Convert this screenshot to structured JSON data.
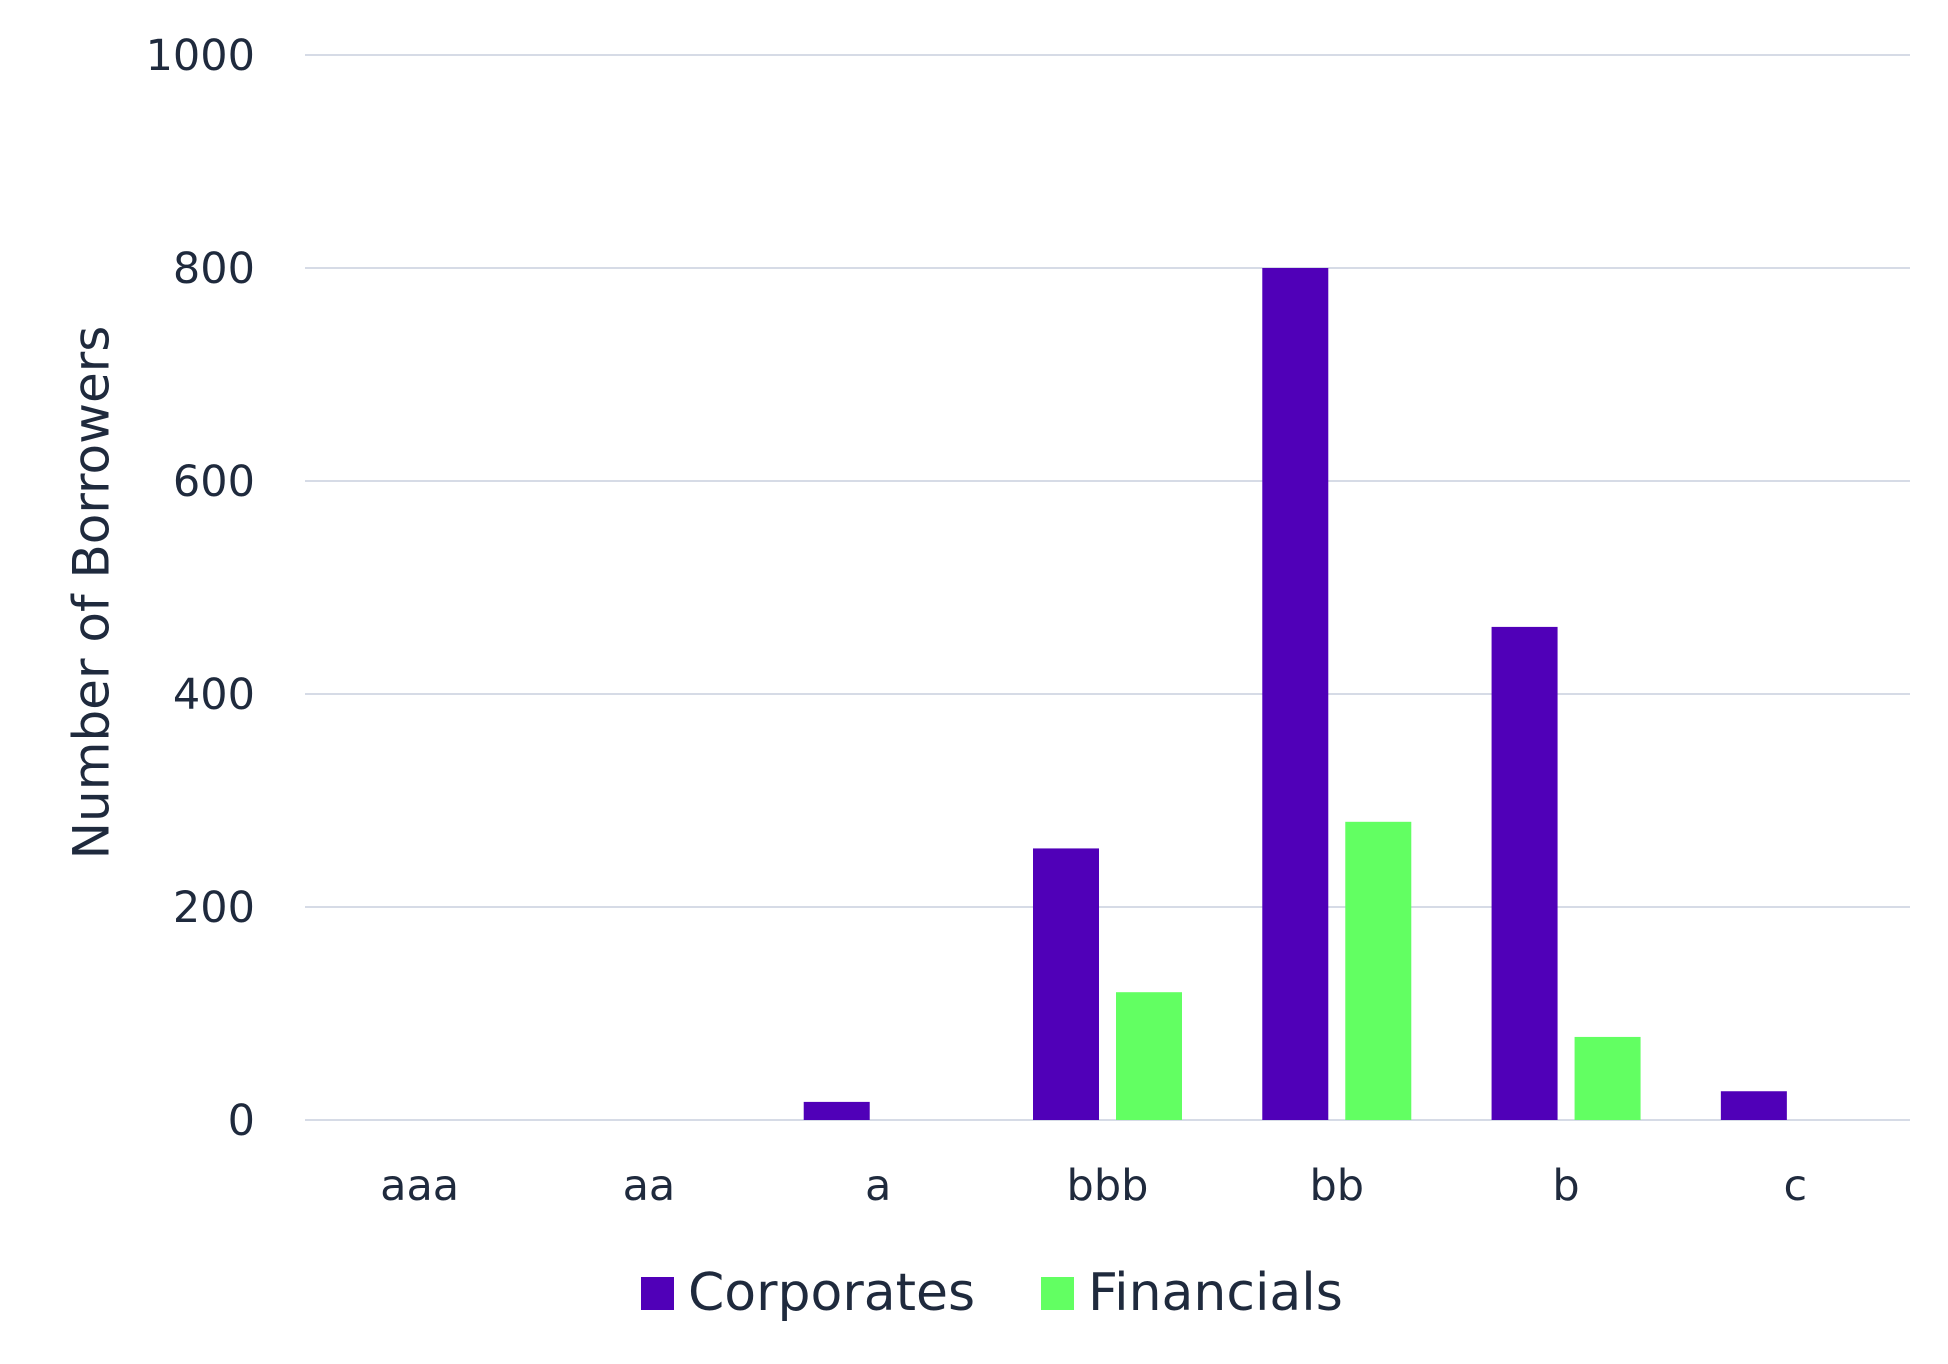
{
  "chart_data": {
    "type": "bar",
    "categories": [
      "aaa",
      "aa",
      "a",
      "bbb",
      "bb",
      "b",
      "c"
    ],
    "series": [
      {
        "name": "Corporates",
        "color": "#5000b8",
        "values": [
          0,
          0,
          17,
          255,
          800,
          463,
          27
        ]
      },
      {
        "name": "Financials",
        "color": "#62ff62",
        "values": [
          0,
          0,
          0,
          120,
          280,
          78,
          0
        ]
      }
    ],
    "title": "",
    "xlabel": "",
    "ylabel": "Number of Borrowers",
    "ylim": [
      0,
      1000
    ],
    "yticks": [
      0,
      200,
      400,
      600,
      800,
      1000
    ],
    "grid": true,
    "legend_position": "bottom"
  }
}
